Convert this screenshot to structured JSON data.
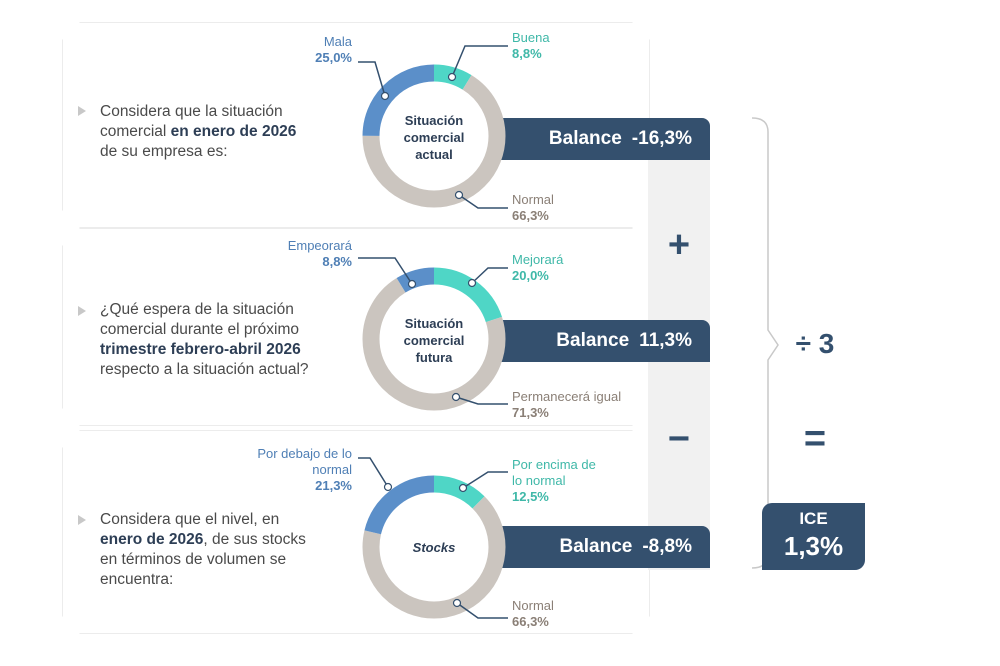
{
  "colors": {
    "positive": "#4fd6c6",
    "neutral": "#cbc5bf",
    "negative": "#5b8fc9",
    "navy": "#34506e"
  },
  "blocks": [
    {
      "question": {
        "pre": "Considera que la situación comercial ",
        "bold": "en enero de 2026",
        "post": " de su empresa es:"
      },
      "center": "Situación comercial actual",
      "balance_label": "Balance",
      "balance_value": "-16,3%",
      "segments": [
        {
          "label": "Buena",
          "value": "8,8%",
          "pct": 8.8,
          "kind": "positive"
        },
        {
          "label": "Normal",
          "value": "66,3%",
          "pct": 66.3,
          "kind": "neutral"
        },
        {
          "label": "Mala",
          "value": "25,0%",
          "pct": 25.0,
          "kind": "negative"
        }
      ]
    },
    {
      "question": {
        "pre": "¿Qué espera de la situación comercial durante el próximo ",
        "bold": "trimestre febrero-abril 2026",
        "post": " respecto a la situación actual?"
      },
      "center": "Situación comercial futura",
      "balance_label": "Balance",
      "balance_value": "11,3%",
      "segments": [
        {
          "label": "Mejorará",
          "value": "20,0%",
          "pct": 20.0,
          "kind": "positive"
        },
        {
          "label": "Permanecerá igual",
          "value": "71,3%",
          "pct": 71.3,
          "kind": "neutral"
        },
        {
          "label": "Empeorará",
          "value": "8,8%",
          "pct": 8.8,
          "kind": "negative"
        }
      ]
    },
    {
      "question": {
        "pre": "Considera que el nivel, en ",
        "bold": "enero de 2026",
        "post": ", de sus stocks en términos de volumen se encuentra:"
      },
      "center": "Stocks",
      "balance_label": "Balance",
      "balance_value": "-8,8%",
      "segments": [
        {
          "label": "Por encima de lo normal",
          "value": "12,5%",
          "pct": 12.5,
          "kind": "positive"
        },
        {
          "label": "Normal",
          "value": "66,3%",
          "pct": 66.3,
          "kind": "neutral"
        },
        {
          "label": "Por debajo de lo normal",
          "value": "21,3%",
          "pct": 21.3,
          "kind": "negative"
        }
      ]
    }
  ],
  "operators": {
    "plus": "+",
    "minus": "−",
    "divide": "÷ 3",
    "equals": "="
  },
  "result": {
    "label": "ICE",
    "value": "1,3%"
  }
}
